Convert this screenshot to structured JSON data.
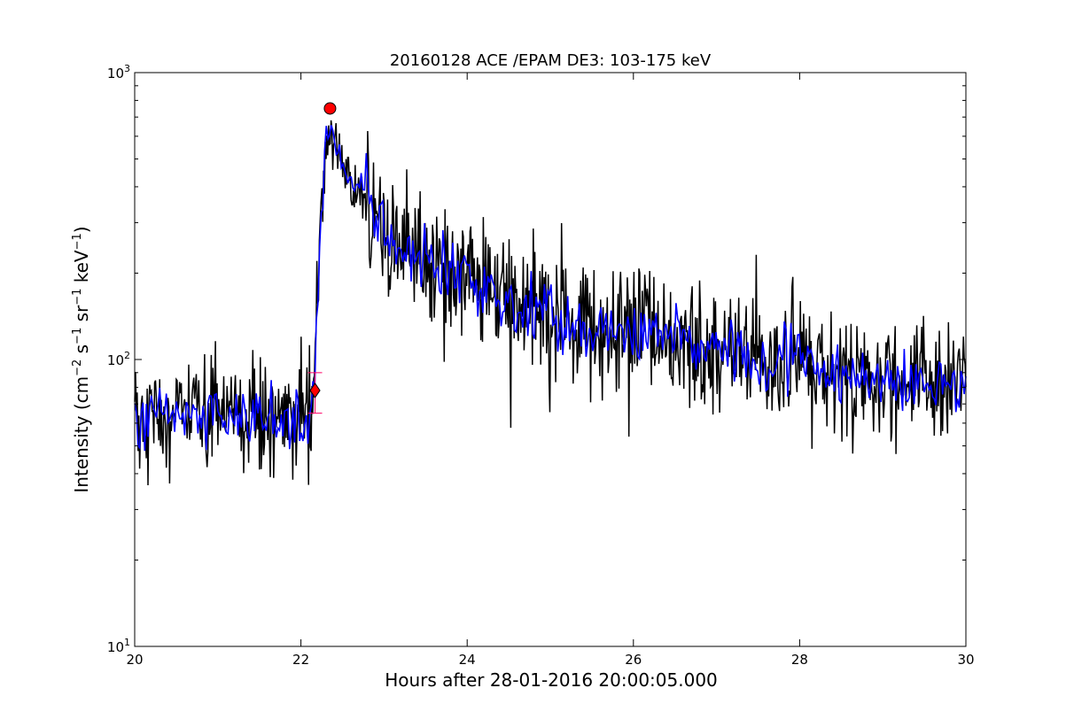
{
  "chart_data": {
    "type": "line",
    "title": "20160128 ACE /EPAM DE3: 103-175 keV",
    "xlabel": "Hours after 28-01-2016 20:00:05.000",
    "ylabel": "Intensity (cm⁻² s⁻¹ sr⁻¹ keV⁻¹)",
    "ylabel_parts": {
      "pre": "Intensity (cm",
      "sup1": "−2",
      "mid1": " s",
      "sup2": "−1",
      "mid2": " sr",
      "sup3": "−1",
      "mid3": " keV",
      "sup4": "−1",
      "post": ")"
    },
    "xlim": [
      20,
      30
    ],
    "ylim": [
      10,
      1000
    ],
    "yscale": "log",
    "x_ticks": [
      20,
      22,
      24,
      26,
      28,
      30
    ],
    "x_tick_labels": [
      "20",
      "22",
      "24",
      "26",
      "28",
      "30"
    ],
    "y_ticks": [
      10,
      100,
      1000
    ],
    "y_tick_labels": [
      {
        "base": "10",
        "exp": "1"
      },
      {
        "base": "10",
        "exp": "2"
      },
      {
        "base": "10",
        "exp": "3"
      }
    ],
    "grid": false,
    "colors": {
      "raw": "#000000",
      "smoothed": "#0000ff",
      "marker": "#ff0000",
      "error": "#ff0066"
    },
    "series": [
      {
        "style": "raw",
        "profile_x": [
          20.0,
          20.5,
          21.0,
          21.5,
          22.0,
          22.1,
          22.15,
          22.2,
          22.25,
          22.3,
          22.35,
          22.4,
          22.5,
          22.6,
          22.8,
          23.0,
          23.3,
          23.6,
          24.0,
          24.5,
          25.0,
          25.5,
          26.0,
          26.5,
          27.0,
          27.5,
          28.0,
          28.5,
          29.0,
          29.5,
          30.0
        ],
        "profile_y": [
          63,
          63,
          62,
          62,
          62,
          62,
          70,
          150,
          350,
          580,
          650,
          600,
          490,
          420,
          370,
          280,
          230,
          215,
          190,
          160,
          140,
          125,
          120,
          115,
          110,
          100,
          95,
          90,
          85,
          85,
          82
        ],
        "noise_dex": 0.11,
        "n_points": 1000
      },
      {
        "style": "smoothed",
        "profile_x": [
          20.0,
          20.5,
          21.0,
          21.5,
          22.0,
          22.1,
          22.15,
          22.2,
          22.25,
          22.3,
          22.35,
          22.4,
          22.5,
          22.6,
          22.8,
          23.0,
          23.3,
          23.6,
          24.0,
          24.5,
          25.0,
          25.5,
          26.0,
          26.5,
          27.0,
          27.5,
          28.0,
          28.5,
          29.0,
          29.5,
          30.0
        ],
        "profile_y": [
          63,
          63,
          62,
          62,
          62,
          62,
          70,
          150,
          350,
          580,
          650,
          600,
          490,
          420,
          370,
          280,
          230,
          215,
          190,
          160,
          140,
          125,
          120,
          115,
          110,
          100,
          95,
          90,
          85,
          85,
          82
        ],
        "noise_dex": 0.055,
        "n_points": 500
      }
    ],
    "markers": [
      {
        "kind": "circle",
        "x": 22.35,
        "y": 750
      },
      {
        "kind": "diamond",
        "x": 22.17,
        "y": 78,
        "err_low": 65,
        "err_high": 90
      }
    ]
  }
}
